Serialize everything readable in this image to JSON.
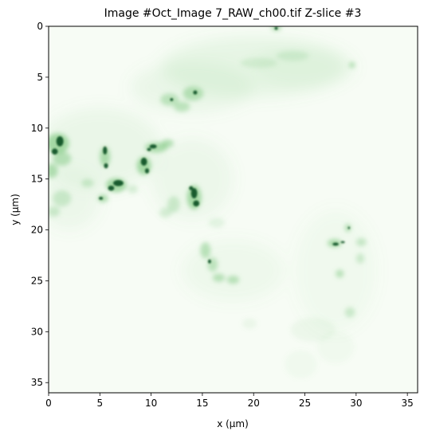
{
  "chart_data": {
    "type": "heatmap",
    "title": "Image #Oct_Image 7_RAW_ch00.tif Z-slice #3",
    "xlabel": "x (μm)",
    "ylabel": "y (μm)",
    "xlim": [
      0,
      36
    ],
    "ylim": [
      36,
      0
    ],
    "xticks": [
      "0",
      "5",
      "10",
      "15",
      "20",
      "25",
      "30",
      "35"
    ],
    "yticks": [
      "0",
      "5",
      "10",
      "15",
      "20",
      "25",
      "30",
      "35"
    ],
    "colormap": "Greens",
    "colors": {
      "low": "#f7fcf5",
      "mid": "#74c476",
      "high": "#00441b"
    },
    "grid": false,
    "legend": "none"
  }
}
